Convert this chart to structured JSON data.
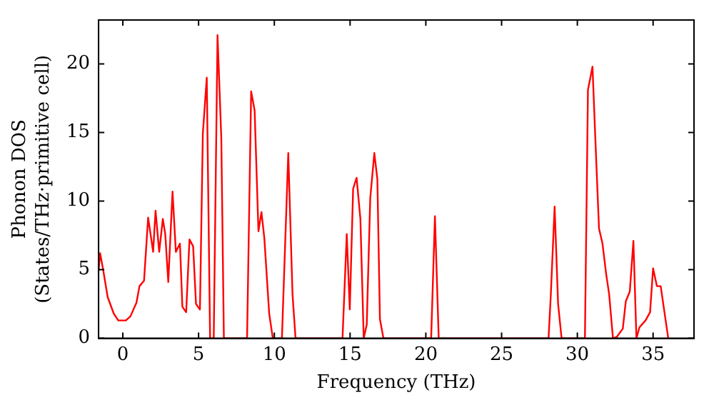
{
  "chart_data": {
    "type": "line",
    "xlabel": "Frequency (THz)",
    "ylabel": "Phonon DOS\n(States/THz·primitive cell)",
    "xlim": [
      -1.6,
      37.7
    ],
    "ylim": [
      0,
      23.2
    ],
    "xticks": [
      0,
      5,
      10,
      15,
      20,
      25,
      30,
      35
    ],
    "yticks": [
      0,
      5,
      10,
      15,
      20
    ],
    "grid": false,
    "legend": false,
    "marker": "none",
    "line_style": "solid",
    "series": [
      {
        "color": "#ff0000",
        "x": [
          -1.6,
          -1.5,
          -1.3,
          -1.0,
          -0.6,
          -0.3,
          0.2,
          0.5,
          0.9,
          1.1,
          1.4,
          1.67,
          2.0,
          2.16,
          2.4,
          2.64,
          2.8,
          3.0,
          3.28,
          3.5,
          3.77,
          3.93,
          4.18,
          4.4,
          4.64,
          4.83,
          5.09,
          5.28,
          5.54,
          5.76,
          6.0,
          6.25,
          6.5,
          6.67,
          8.2,
          8.47,
          8.7,
          8.95,
          9.15,
          9.34,
          9.66,
          9.9,
          10.5,
          10.92,
          11.2,
          11.4,
          14.5,
          14.78,
          14.98,
          15.2,
          15.43,
          15.68,
          15.9,
          16.1,
          16.33,
          16.6,
          16.8,
          16.97,
          17.2,
          20.35,
          20.6,
          20.85,
          28.1,
          28.25,
          28.5,
          28.73,
          28.96,
          30.5,
          30.7,
          31.0,
          31.2,
          31.43,
          31.66,
          31.9,
          32.1,
          32.35,
          32.6,
          33.0,
          33.2,
          33.46,
          33.7,
          33.9,
          34.1,
          34.5,
          34.8,
          35.0,
          35.25,
          35.5,
          36.0
        ],
        "values": [
          4.9,
          6.2,
          5.0,
          3.0,
          1.8,
          1.3,
          1.3,
          1.6,
          2.6,
          3.8,
          4.2,
          8.8,
          6.3,
          9.3,
          6.3,
          8.7,
          7.6,
          4.1,
          10.7,
          6.3,
          6.9,
          2.3,
          1.9,
          7.2,
          6.7,
          2.5,
          2.1,
          14.9,
          19.0,
          0,
          0,
          22.1,
          14.6,
          0,
          0,
          18.0,
          16.6,
          7.8,
          9.2,
          7.3,
          1.8,
          0,
          0,
          13.5,
          3.2,
          0,
          0,
          7.6,
          2.1,
          10.9,
          11.7,
          8.7,
          0,
          1.0,
          10.2,
          13.5,
          11.6,
          1.4,
          0,
          0,
          8.9,
          0,
          0,
          3.2,
          9.6,
          2.5,
          0,
          0,
          18.1,
          19.8,
          14.2,
          8.0,
          6.9,
          4.7,
          3.2,
          0,
          0.1,
          0.7,
          2.7,
          3.4,
          7.1,
          0,
          0.8,
          1.3,
          1.9,
          5.1,
          3.8,
          3.8,
          0
        ]
      }
    ]
  }
}
